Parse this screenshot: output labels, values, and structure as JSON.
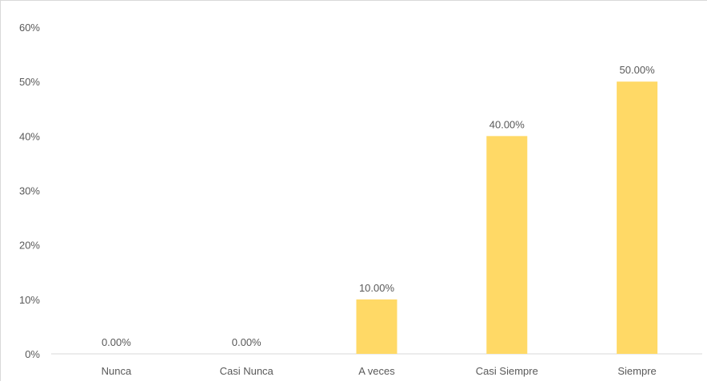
{
  "chart_data": {
    "type": "bar",
    "categories": [
      "Nunca",
      "Casi Nunca",
      "A veces",
      "Casi Siempre",
      "Siempre"
    ],
    "values": [
      0,
      0,
      10,
      40,
      50
    ],
    "data_labels": [
      "0.00%",
      "0.00%",
      "10.00%",
      "40.00%",
      "50.00%"
    ],
    "title": "",
    "xlabel": "",
    "ylabel": "",
    "ylim": [
      0,
      60
    ],
    "yticks": [
      "0%",
      "10%",
      "20%",
      "30%",
      "40%",
      "50%",
      "60%"
    ],
    "grid": false,
    "legend": "none",
    "colors": {
      "bar": "#FFD966",
      "axis": "#d9d9d9",
      "text": "#595959"
    }
  }
}
